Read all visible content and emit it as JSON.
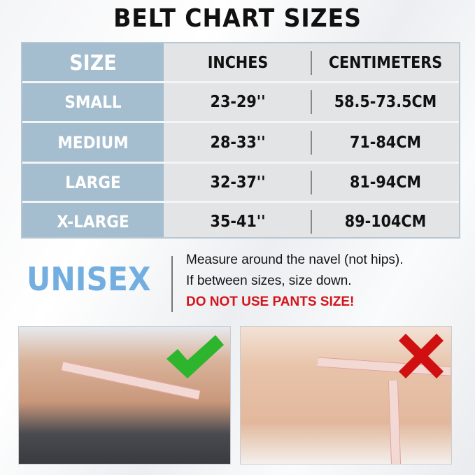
{
  "title": "BELT CHART SIZES",
  "table": {
    "headers": [
      "SIZE",
      "INCHES",
      "CENTIMETERS"
    ],
    "rows": [
      {
        "size": "SMALL",
        "inches": "23-29''",
        "cm": "58.5-73.5CM"
      },
      {
        "size": "MEDIUM",
        "inches": "28-33''",
        "cm": "71-84CM"
      },
      {
        "size": "LARGE",
        "inches": "32-37''",
        "cm": "81-94CM"
      },
      {
        "size": "X-LARGE",
        "inches": "35-41''",
        "cm": "89-104CM"
      }
    ]
  },
  "unisex": "UNISEX",
  "notes": {
    "line1": "Measure around the navel (not hips).",
    "line2": "If between sizes, size down.",
    "warning": "DO NOT USE PANTS SIZE!"
  },
  "photos": {
    "correct": {
      "icon": "check-icon",
      "color": "#2db52d"
    },
    "wrong": {
      "icon": "x-icon",
      "color": "#d01010"
    }
  },
  "colors": {
    "size_column": "#a4bdcf",
    "unisex": "#73aee0",
    "warning": "#d4141c"
  }
}
